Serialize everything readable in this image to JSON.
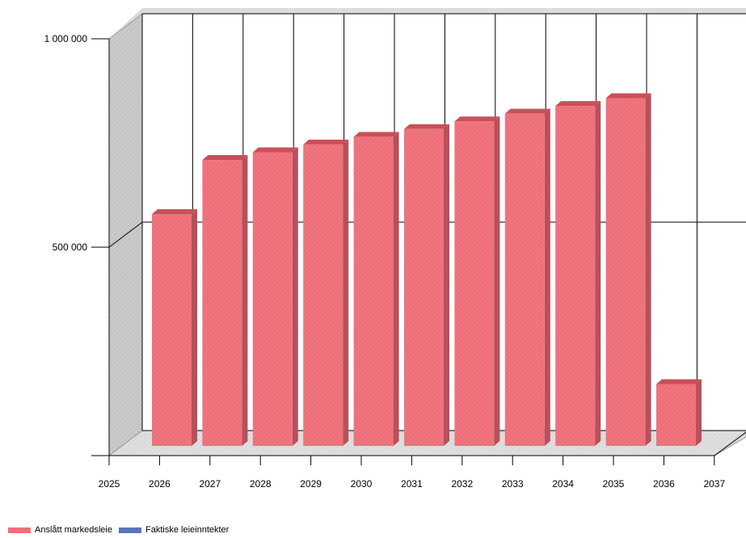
{
  "chart_data": {
    "type": "bar",
    "style": "3d",
    "categories": [
      "2025",
      "2026",
      "2027",
      "2028",
      "2029",
      "2030",
      "2031",
      "2032",
      "2033",
      "2034",
      "2035",
      "2036",
      "2037"
    ],
    "x_tick_labels": [
      "2025",
      "2026",
      "2027",
      "2028",
      "2029",
      "2030",
      "2031",
      "2032",
      "2033",
      "2034",
      "2035",
      "2036",
      "2037"
    ],
    "y_tick_labels": [
      "1 000 000",
      "500 000"
    ],
    "ylim": [
      0,
      1000000
    ],
    "grid": true,
    "legend_position": "bottom-left",
    "series": [
      {
        "name": "Anslått markedsleie",
        "color": "#ee6f79",
        "values": [
          null,
          600000,
          740000,
          760000,
          780000,
          800000,
          820000,
          840000,
          860000,
          880000,
          900000,
          160000,
          null
        ]
      },
      {
        "name": "Faktiske leieinntekter",
        "color": "#5b74b6",
        "values": [
          null,
          null,
          null,
          null,
          null,
          null,
          null,
          null,
          null,
          null,
          null,
          null,
          null
        ]
      }
    ]
  }
}
